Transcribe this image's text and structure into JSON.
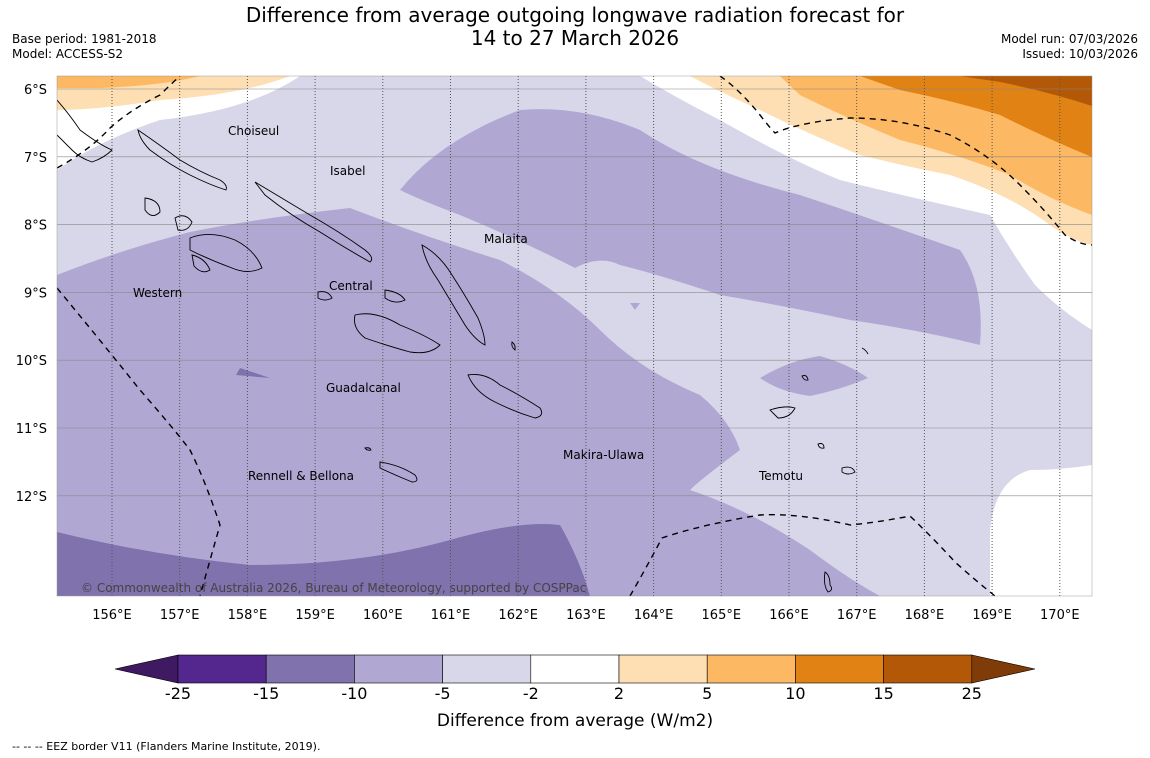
{
  "header": {
    "title_line1": "Difference from average outgoing longwave radiation forecast for",
    "title_line2": "14 to 27 March 2026",
    "base_period": "Base period: 1981-2018",
    "model": "Model: ACCESS-S2",
    "model_run": "Model run: 07/03/2026",
    "issued": "Issued: 10/03/2026"
  },
  "map": {
    "lon_labels": [
      "156°E",
      "157°E",
      "158°E",
      "159°E",
      "160°E",
      "161°E",
      "162°E",
      "163°E",
      "164°E",
      "165°E",
      "166°E",
      "167°E",
      "168°E",
      "169°E",
      "170°E"
    ],
    "lat_labels": [
      "6°S",
      "7°S",
      "8°S",
      "9°S",
      "10°S",
      "11°S",
      "12°S"
    ],
    "province_labels": [
      "Choiseul",
      "Isabel",
      "Malaita",
      "Western",
      "Central",
      "Guadalcanal",
      "Makira-Ulawa",
      "Rennell & Bellona",
      "Temotu"
    ],
    "copyright": "© Commonwealth of Australia 2026, Bureau of Meteorology, supported by COSPPac"
  },
  "legend": {
    "ticks": [
      "-25",
      "-15",
      "-10",
      "-5",
      "-2",
      "2",
      "5",
      "10",
      "15",
      "25"
    ],
    "colors": [
      "#3f1a63",
      "#54278f",
      "#7f72ad",
      "#b0a8d3",
      "#d8d7ea",
      "#ffffff",
      "#fedfb3",
      "#fdb863",
      "#e08214",
      "#b35806",
      "#7f3b08"
    ],
    "label": "Difference from average (W/m2)"
  },
  "footnote": "--  --  -- EEZ border V11 (Flanders Marine Institute, 2019)."
}
